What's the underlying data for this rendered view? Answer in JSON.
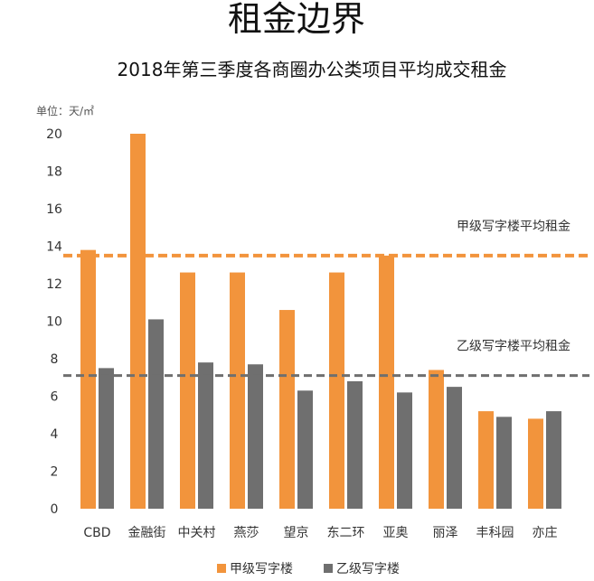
{
  "title": "租金边界",
  "subtitle": "2018年第三季度各商圈办公类项目平均成交租金",
  "unit_label": "单位：天/㎡",
  "colors": {
    "grade_a": "#F2943C",
    "grade_b": "#6F6F6F",
    "ref_a": "#F2943C",
    "ref_b": "#6F6F6F"
  },
  "chart_data": {
    "type": "bar",
    "categories": [
      "CBD",
      "金融街",
      "中关村",
      "燕莎",
      "望京",
      "东二环",
      "亚奥",
      "丽泽",
      "丰科园",
      "亦庄"
    ],
    "series": [
      {
        "name": "甲级写字楼",
        "values": [
          13.8,
          20.0,
          12.6,
          12.6,
          10.6,
          12.6,
          13.5,
          7.4,
          5.2,
          4.8
        ]
      },
      {
        "name": "乙级写字楼",
        "values": [
          7.5,
          10.1,
          7.8,
          7.7,
          6.3,
          6.8,
          6.2,
          6.5,
          4.9,
          5.2
        ]
      }
    ],
    "reference_lines": [
      {
        "label": "甲级写字楼平均租金",
        "value": 13.5
      },
      {
        "label": "乙级写字楼平均租金",
        "value": 7.1
      }
    ],
    "yticks": [
      0,
      2,
      4,
      6,
      8,
      10,
      12,
      14,
      16,
      18,
      20
    ],
    "ylim": [
      0,
      20
    ],
    "grid": false,
    "legend": "bottom"
  }
}
